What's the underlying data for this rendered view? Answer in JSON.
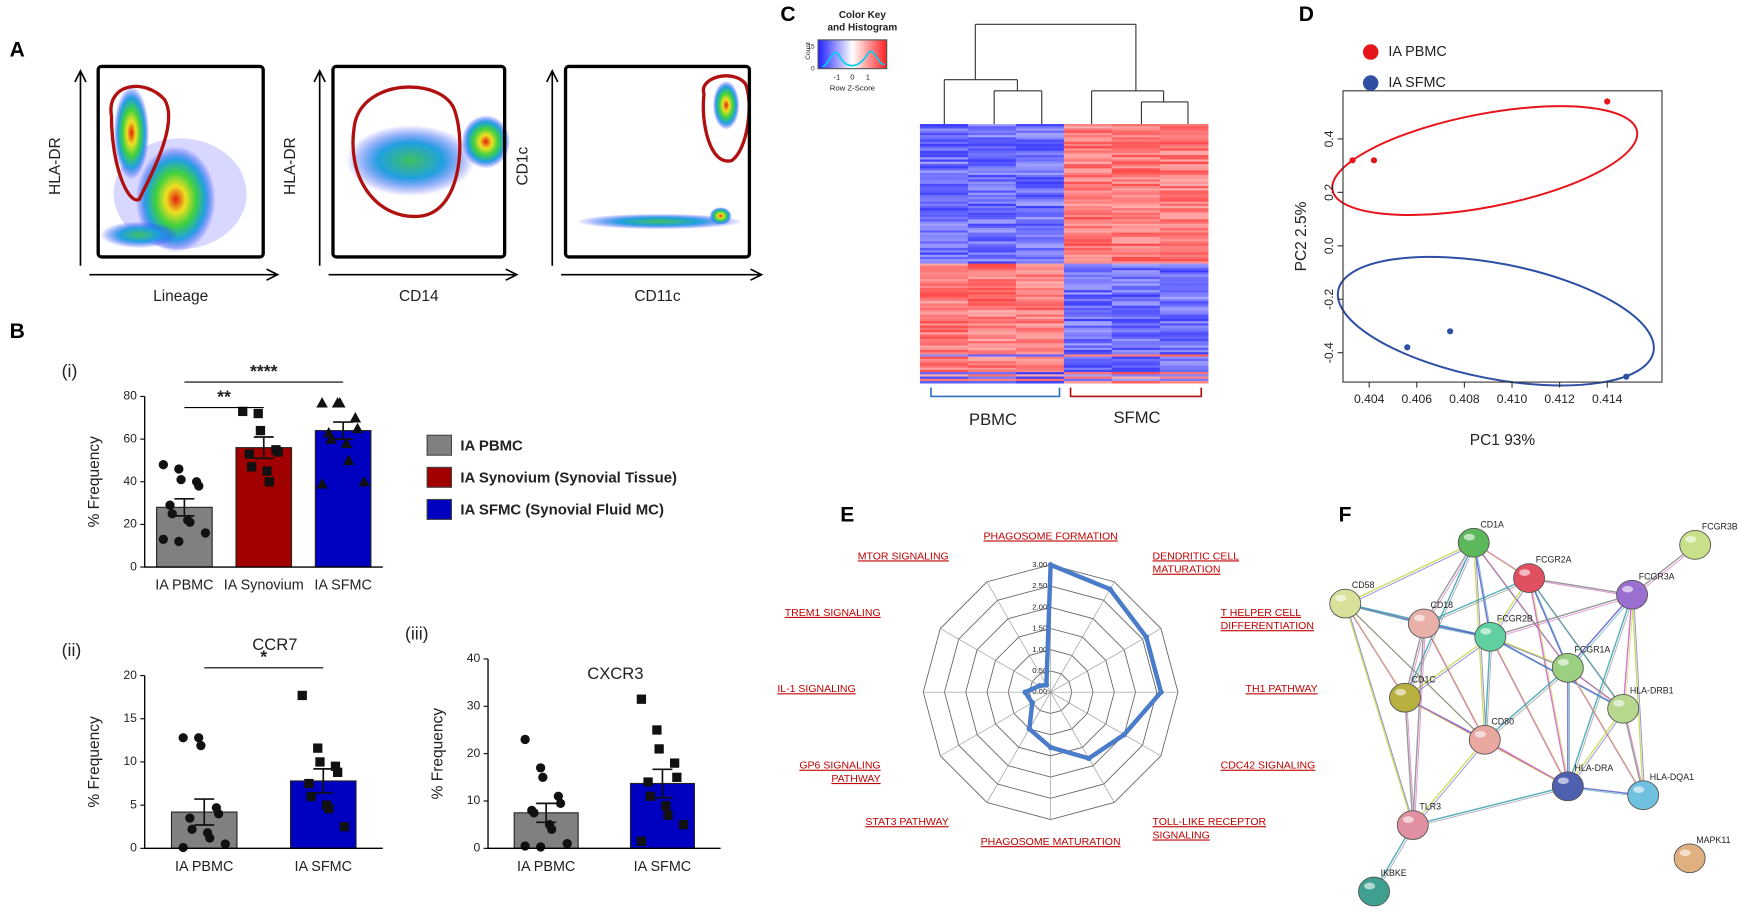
{
  "panel_labels": [
    "A",
    "B",
    "C",
    "D",
    "E",
    "F"
  ],
  "flow": {
    "plots": [
      {
        "y_label": "HLA-DR",
        "x_label": "Lineage"
      },
      {
        "y_label": "HLA-DR",
        "x_label": "CD14"
      },
      {
        "y_label": "CD1c",
        "x_label": "CD11c"
      }
    ]
  },
  "chart_data": [
    {
      "type": "bar",
      "label": "(i)",
      "categories": [
        "IA PBMC",
        "IA Synovium",
        "IA SFMC"
      ],
      "values": [
        28,
        56,
        64
      ],
      "errors": [
        4,
        5,
        4
      ],
      "points": [
        [
          48,
          46,
          41,
          40,
          38,
          29,
          25,
          22,
          21,
          16,
          13,
          12
        ],
        [
          73,
          72,
          64,
          55,
          54,
          53,
          47,
          45,
          40
        ],
        [
          77,
          77,
          77,
          70,
          65,
          63,
          60,
          58,
          50,
          40,
          39
        ]
      ],
      "colors": [
        "#808080",
        "#a00000",
        "#0000c0"
      ],
      "markers": [
        "circle",
        "square",
        "triangle"
      ],
      "ylim": [
        0,
        80
      ],
      "yticks": [
        0,
        20,
        40,
        60,
        80
      ],
      "ylabel": "% Frequency",
      "annotations": [
        {
          "text": "**",
          "between": [
            0,
            1
          ]
        },
        {
          "text": "****",
          "between": [
            0,
            2
          ]
        }
      ],
      "legend": [
        "IA PBMC",
        "IA Synovium (Synovial Tissue)",
        "IA SFMC (Synovial Fluid MC)"
      ]
    },
    {
      "type": "bar",
      "label": "(ii)",
      "title": "CCR7",
      "categories": [
        "IA PBMC",
        "IA SFMC"
      ],
      "values": [
        4.2,
        7.8
      ],
      "errors": [
        1.5,
        1.4
      ],
      "points": [
        [
          12.8,
          12.8,
          11.9,
          4.7,
          4,
          3.5,
          2.2,
          1.8,
          1.2,
          0.5,
          0.1
        ],
        [
          17.7,
          11.6,
          10,
          9.5,
          8.8,
          7.5,
          6,
          5,
          4.6,
          2.5
        ]
      ],
      "colors": [
        "#808080",
        "#0000c0"
      ],
      "markers": [
        "circle",
        "square"
      ],
      "ylim": [
        0,
        20
      ],
      "yticks": [
        0,
        5,
        10,
        15,
        20
      ],
      "ylabel": "% Frequency",
      "annotations": [
        {
          "text": "*",
          "between": [
            0,
            1
          ]
        }
      ]
    },
    {
      "type": "bar",
      "label": "(iii)",
      "title": "CXCR3",
      "categories": [
        "IA PBMC",
        "IA SFMC"
      ],
      "values": [
        7.5,
        13.7
      ],
      "errors": [
        2,
        3
      ],
      "points": [
        [
          23,
          17,
          15,
          11,
          9.5,
          8,
          7.5,
          5,
          4,
          1,
          0.5,
          0.3
        ],
        [
          31.5,
          25,
          21,
          18,
          15,
          14,
          11,
          9,
          7,
          5,
          1.5
        ]
      ],
      "colors": [
        "#808080",
        "#0000c0"
      ],
      "markers": [
        "circle",
        "square"
      ],
      "ylim": [
        0,
        40
      ],
      "yticks": [
        0,
        10,
        20,
        30,
        40
      ],
      "ylabel": "% Frequency",
      "annotations": []
    },
    {
      "type": "scatter",
      "series": [
        {
          "name": "IA PBMC",
          "color": "#e8141b",
          "x": [
            0.4033,
            0.4042,
            0.414
          ],
          "y": [
            0.32,
            0.32,
            0.54
          ]
        },
        {
          "name": "IA SFMC",
          "color": "#2e4fa3",
          "x": [
            0.4056,
            0.4074,
            0.4148
          ],
          "y": [
            -0.38,
            -0.32,
            -0.49
          ]
        }
      ],
      "xlim": [
        0.4029,
        0.4163
      ],
      "xticks": [
        0.404,
        0.406,
        0.408,
        {
          "value": 0.41,
          "label": "0.410"
        },
        0.412,
        0.414
      ],
      "ylim": [
        -0.51,
        0.58
      ],
      "yticks": [
        -0.4,
        -0.2,
        {
          "value": 0,
          "label": "0.0"
        },
        0.2,
        0.4
      ],
      "xlabel": "PC1 93%",
      "ylabel": "PC2 2.5%"
    },
    {
      "type": "radar",
      "color": "#4a7cc9",
      "categories": [
        "PHAGOSOME FORMATION",
        "DENDRITIC CELL MATURATION",
        "T HELPER CELL DIFFERENTIATION",
        "TH1 PATHWAY",
        "CDC42 SIGNALING",
        "TOLL-LIKE RECEPTOR SIGNALING",
        "PHAGOSOME MATURATION",
        "STAT3 PATHWAY",
        "GP6 SIGNALING PATHWAY",
        "IL-1 SIGNALING",
        "TREM1 SIGNALING",
        "MTOR SIGNALING"
      ],
      "values": [
        3.0,
        2.8,
        2.6,
        2.6,
        2.0,
        1.8,
        1.3,
        1.0,
        0.5,
        0.6,
        0.3,
        0.2
      ],
      "rlim": [
        0,
        3
      ],
      "rticks": [
        {
          "value": 0,
          "label": "0.00"
        },
        {
          "value": 0.5,
          "label": "0.50"
        },
        {
          "value": 1,
          "label": "1.00"
        },
        {
          "value": 1.5,
          "label": "1.50"
        },
        {
          "value": 2,
          "label": "2.00"
        },
        {
          "value": 2.5,
          "label": "2.50"
        },
        {
          "value": 3,
          "label": "3.00"
        }
      ]
    }
  ],
  "heatmap": {
    "key_title": [
      "Color Key",
      "and Histogram"
    ],
    "key_xticks": [
      -1,
      0,
      1
    ],
    "key_xlabel": "Row Z-Score",
    "key_ylabel": "Count",
    "key_yticks": [
      0,
      15
    ],
    "groups": [
      "PBMC",
      "SFMC"
    ]
  },
  "network": {
    "nodes": [
      "CD1A",
      "FCGR3B",
      "FCGR2A",
      "FCGR3A",
      "CD58",
      "CD18",
      "FCGR2B",
      "FCGR1A",
      "CD1C",
      "HLA-DRB1",
      "CD80",
      "HLA-DRA",
      "HLA-DQA1",
      "TLR3",
      "IKBKE",
      "MAPK11"
    ]
  }
}
